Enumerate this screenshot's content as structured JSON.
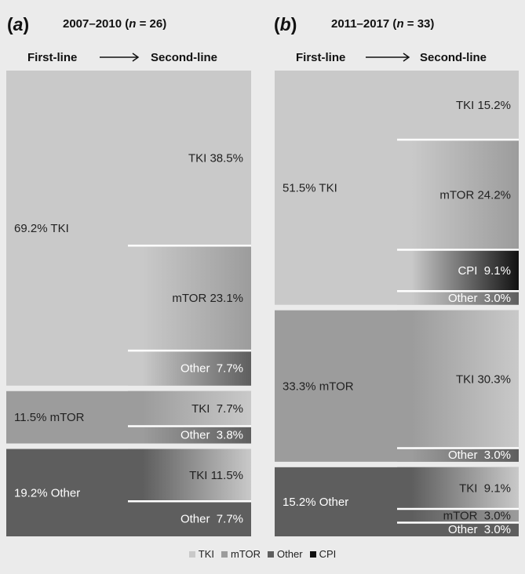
{
  "colors": {
    "TKI": "#c9c9c9",
    "mTOR": "#9c9c9c",
    "Other": "#5e5e5e",
    "CPI": "#111111"
  },
  "legend": [
    {
      "key": "TKI",
      "label": "TKI"
    },
    {
      "key": "mTOR",
      "label": "mTOR"
    },
    {
      "key": "Other",
      "label": "Other"
    },
    {
      "key": "CPI",
      "label": "CPI"
    }
  ],
  "chart_data": [
    {
      "type": "flow",
      "panel": "(a)",
      "panel_letter": "a",
      "title_period": "2007–2010",
      "n": "26",
      "first_line_label": "First-line",
      "second_line_label": "Second-line",
      "first_line": [
        {
          "name": "TKI",
          "pct": 69.2,
          "label": "69.2% TKI",
          "second_line": [
            {
              "name": "TKI",
              "pct": 38.5,
              "label": "TKI 38.5%"
            },
            {
              "name": "mTOR",
              "pct": 23.1,
              "label": "mTOR 23.1%"
            },
            {
              "name": "Other",
              "pct": 7.7,
              "label": "Other  7.7%"
            }
          ]
        },
        {
          "name": "mTOR",
          "pct": 11.5,
          "label": "11.5% mTOR",
          "second_line": [
            {
              "name": "TKI",
              "pct": 7.7,
              "label": "TKI  7.7%"
            },
            {
              "name": "Other",
              "pct": 3.8,
              "label": "Other  3.8%"
            }
          ]
        },
        {
          "name": "Other",
          "pct": 19.2,
          "label": "19.2% Other",
          "second_line": [
            {
              "name": "TKI",
              "pct": 11.5,
              "label": "TKI 11.5%"
            },
            {
              "name": "Other",
              "pct": 7.7,
              "label": "Other  7.7%"
            }
          ]
        }
      ]
    },
    {
      "type": "flow",
      "panel": "(b)",
      "panel_letter": "b",
      "title_period": "2011–2017",
      "n": "33",
      "first_line_label": "First-line",
      "second_line_label": "Second-line",
      "first_line": [
        {
          "name": "TKI",
          "pct": 51.5,
          "label": "51.5% TKI",
          "second_line": [
            {
              "name": "TKI",
              "pct": 15.2,
              "label": "TKI 15.2%"
            },
            {
              "name": "mTOR",
              "pct": 24.2,
              "label": "mTOR 24.2%"
            },
            {
              "name": "CPI",
              "pct": 9.1,
              "label": "CPI  9.1%"
            },
            {
              "name": "Other",
              "pct": 3.0,
              "label": "Other  3.0%"
            }
          ]
        },
        {
          "name": "mTOR",
          "pct": 33.3,
          "label": "33.3% mTOR",
          "second_line": [
            {
              "name": "TKI",
              "pct": 30.3,
              "label": "TKI 30.3%"
            },
            {
              "name": "Other",
              "pct": 3.0,
              "label": "Other  3.0%"
            }
          ]
        },
        {
          "name": "Other",
          "pct": 15.2,
          "label": "15.2% Other",
          "second_line": [
            {
              "name": "TKI",
              "pct": 9.1,
              "label": "TKI  9.1%"
            },
            {
              "name": "mTOR",
              "pct": 3.0,
              "label": "mTOR  3.0%"
            },
            {
              "name": "Other",
              "pct": 3.0,
              "label": "Other  3.0%"
            }
          ]
        }
      ]
    }
  ]
}
